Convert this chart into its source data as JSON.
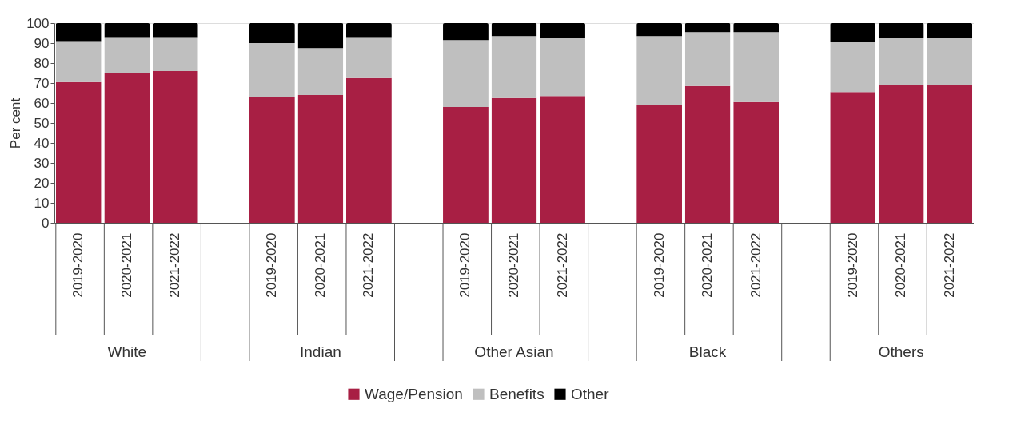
{
  "chart_data": {
    "type": "bar",
    "stacked": true,
    "ylabel": "Per cent",
    "ylim": [
      0,
      100
    ],
    "yticks": [
      0,
      10,
      20,
      30,
      40,
      50,
      60,
      70,
      80,
      90,
      100
    ],
    "grid": false,
    "legend": "bottom",
    "categories": [
      "2019-2020",
      "2020-2021",
      "2021-2022",
      null,
      "2019-2020",
      "2020-2021",
      "2021-2022",
      null,
      "2019-2020",
      "2020-2021",
      "2021-2022",
      null,
      "2019-2020",
      "2020-2021",
      "2021-2022",
      null,
      "2019-2020",
      "2020-2021",
      "2021-2022"
    ],
    "annotations": [
      "White",
      "Indian",
      "Other Asian",
      "Black",
      "Others"
    ],
    "series": [
      {
        "name": "Wage/Pension",
        "color": "#a81f44",
        "values": [
          70.5,
          75,
          76,
          null,
          63,
          64,
          72.5,
          null,
          58,
          62.5,
          63.5,
          null,
          59,
          68.5,
          60.5,
          null,
          65.5,
          69,
          69
        ]
      },
      {
        "name": "Benefits",
        "color": "#bfbfbf",
        "values": [
          20.5,
          18,
          17,
          null,
          27,
          23.5,
          20.5,
          null,
          33.5,
          31,
          29,
          null,
          34.5,
          27,
          35,
          null,
          25,
          23.5,
          23.5
        ]
      },
      {
        "name": "Other",
        "color": "#000000",
        "values": [
          9,
          7,
          7,
          null,
          10,
          12.5,
          7,
          null,
          8.5,
          6.5,
          7.5,
          null,
          6.5,
          4.5,
          4.5,
          null,
          9.5,
          7.5,
          7.5
        ]
      }
    ]
  }
}
